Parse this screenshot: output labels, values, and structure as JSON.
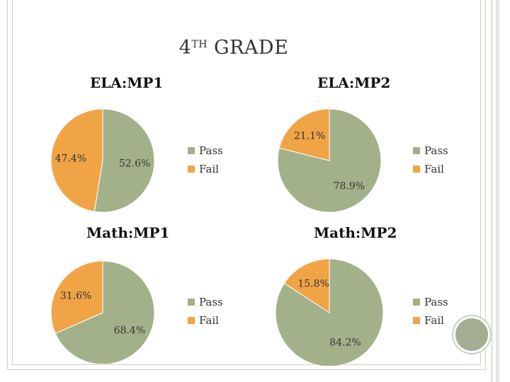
{
  "slide": {
    "title_prefix": "4",
    "title_sup": "TH",
    "title_main": " GRADE"
  },
  "colors": {
    "pass": "#a3b18a",
    "fail": "#f0a446"
  },
  "chart_data": [
    {
      "type": "pie",
      "title": "ELA:MP1",
      "categories": [
        "Pass",
        "Fail"
      ],
      "values": [
        52.6,
        47.4
      ],
      "labels": [
        "52.6%",
        "47.4%"
      ]
    },
    {
      "type": "pie",
      "title": "ELA:MP2",
      "categories": [
        "Pass",
        "Fail"
      ],
      "values": [
        78.9,
        21.1
      ],
      "labels": [
        "78.9%",
        "21.1%"
      ]
    },
    {
      "type": "pie",
      "title": "Math:MP1",
      "categories": [
        "Pass",
        "Fail"
      ],
      "values": [
        68.4,
        31.6
      ],
      "labels": [
        "68.4%",
        "31.6%"
      ]
    },
    {
      "type": "pie",
      "title": "Math:MP2",
      "categories": [
        "Pass",
        "Fail"
      ],
      "values": [
        84.2,
        15.8
      ],
      "labels": [
        "84.2%",
        "15.8%"
      ]
    }
  ]
}
